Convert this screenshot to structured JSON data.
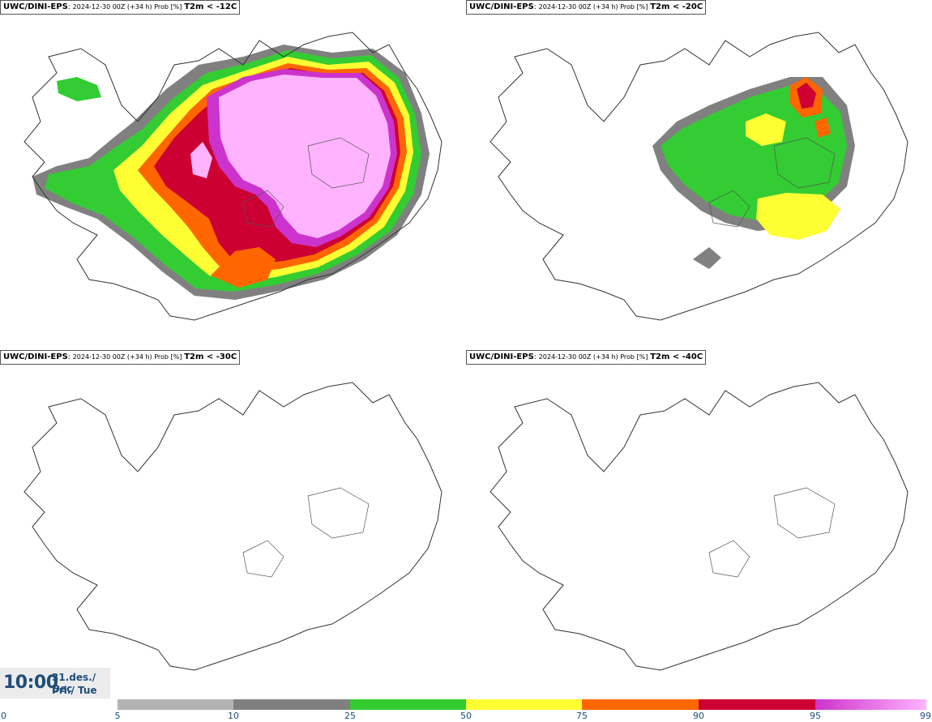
{
  "panels": [
    {
      "model": "UWC/DINI-EPS",
      "run": "2024-12-30 00Z (+34 h) Prob [%]",
      "threshold": "T2m < -12C"
    },
    {
      "model": "UWC/DINI-EPS",
      "run": "2024-12-30 00Z (+34 h) Prob [%]",
      "threshold": "T2m < -20C"
    },
    {
      "model": "UWC/DINI-EPS",
      "run": "2024-12-30 00Z (+34 h) Prob [%]",
      "threshold": "T2m < -30C"
    },
    {
      "model": "UWC/DINI-EPS",
      "run": "2024-12-30 00Z (+34 h) Prob [%]",
      "threshold": "T2m < -40C"
    }
  ],
  "time": {
    "hour": "10:00",
    "date_line1": "31.des./ Dec",
    "date_line2": "Þri./ Tue"
  },
  "colorbar": {
    "tick_labels": [
      "0",
      "5",
      "10",
      "25",
      "50",
      "75",
      "90",
      "95",
      "99"
    ],
    "bins": [
      {
        "from": 5,
        "to": 10,
        "color": "#b3b3b3"
      },
      {
        "from": 10,
        "to": 25,
        "color": "#808080"
      },
      {
        "from": 25,
        "to": 50,
        "color": "#33cc33"
      },
      {
        "from": 50,
        "to": 75,
        "color": "#ffff33"
      },
      {
        "from": 75,
        "to": 90,
        "color": "#ff6600"
      },
      {
        "from": 90,
        "to": 95,
        "color": "#cc0033"
      },
      {
        "from": 95,
        "to": 99,
        "color": "#cc33cc"
      }
    ],
    "top_color": "#ffb3ff"
  }
}
